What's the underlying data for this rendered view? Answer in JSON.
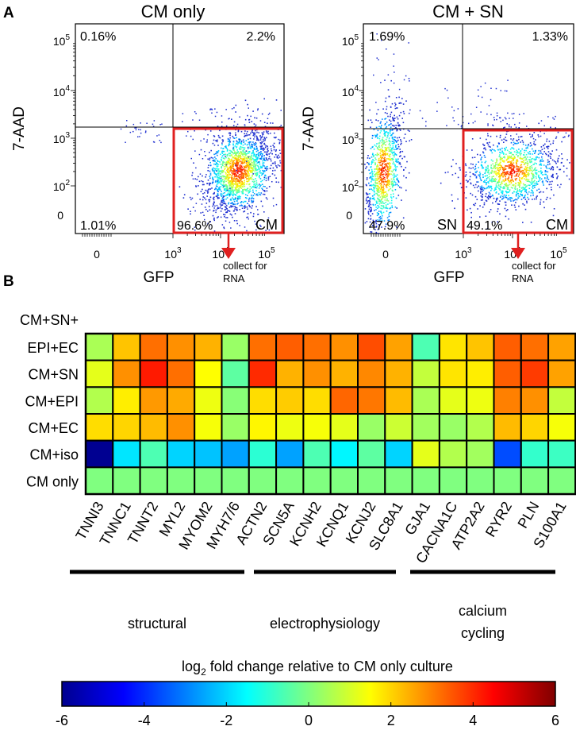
{
  "chart_data": [
    {
      "type": "scatter",
      "panel": "A",
      "title": "CM only",
      "xlabel": "GFP",
      "ylabel": "7-AAD",
      "x_ticks": [
        {
          "base": "0",
          "exp": ""
        },
        {
          "base": "10",
          "exp": "3"
        },
        {
          "base": "10",
          "exp": "4"
        },
        {
          "base": "10",
          "exp": "5"
        }
      ],
      "y_ticks": [
        {
          "base": "0",
          "exp": ""
        },
        {
          "base": "10",
          "exp": "2"
        },
        {
          "base": "10",
          "exp": "3"
        },
        {
          "base": "10",
          "exp": "4"
        },
        {
          "base": "10",
          "exp": "5"
        }
      ],
      "quadrants": {
        "upper_left": "0.16%",
        "upper_right": "2.2%",
        "lower_left": "1.01%",
        "lower_right": "96.6%"
      },
      "gates": [
        {
          "label": "CM",
          "color": "#e02020"
        }
      ],
      "annotation": [
        "collect for",
        "RNA"
      ]
    },
    {
      "type": "scatter",
      "panel": "A",
      "title": "CM + SN",
      "xlabel": "GFP",
      "ylabel": "7-AAD",
      "x_ticks": [
        {
          "base": "0",
          "exp": ""
        },
        {
          "base": "10",
          "exp": "3"
        },
        {
          "base": "10",
          "exp": "4"
        },
        {
          "base": "10",
          "exp": "5"
        }
      ],
      "y_ticks": [
        {
          "base": "0",
          "exp": ""
        },
        {
          "base": "10",
          "exp": "2"
        },
        {
          "base": "10",
          "exp": "3"
        },
        {
          "base": "10",
          "exp": "4"
        },
        {
          "base": "10",
          "exp": "5"
        }
      ],
      "quadrants": {
        "upper_left": "1.69%",
        "upper_right": "1.33%",
        "lower_left": "47.9%",
        "lower_right": "49.1%"
      },
      "population_labels": {
        "lower_left": "SN",
        "lower_right": "CM"
      },
      "gates": [
        {
          "label": "CM",
          "color": "#e02020"
        }
      ],
      "annotation": [
        "collect for",
        "RNA"
      ]
    },
    {
      "type": "heatmap",
      "panel": "B",
      "title": "log2 fold change relative to CM only culture",
      "colorbar_label": {
        "base": "log",
        "sub": "2",
        "rest": " fold change relative to CM only culture"
      },
      "rows": [
        {
          "label_lines": [
            "CM+SN+",
            "EPI+EC"
          ],
          "values": [
            0.5,
            2.2,
            3.2,
            2.8,
            2.4,
            0.3,
            3.2,
            3.4,
            3.2,
            2.8,
            3.6,
            2.6,
            -0.6,
            1.8,
            2.2,
            3.4,
            3.2,
            2.6
          ]
        },
        {
          "label_lines": [
            "CM+SN"
          ],
          "values": [
            1.2,
            2.8,
            4.2,
            3.2,
            1.5,
            -0.4,
            4.0,
            2.4,
            2.8,
            2.4,
            2.9,
            2.4,
            0.8,
            1.8,
            1.7,
            3.4,
            3.8,
            2.6
          ]
        },
        {
          "label_lines": [
            "CM+EPI"
          ],
          "values": [
            0.6,
            1.7,
            2.7,
            2.5,
            1.3,
            0.1,
            1.9,
            2.1,
            1.9,
            3.3,
            3.1,
            2.3,
            0.5,
            1.2,
            1.3,
            3.0,
            2.8,
            0.8
          ]
        },
        {
          "label_lines": [
            "CM+EC"
          ],
          "values": [
            1.9,
            2.0,
            2.3,
            2.8,
            1.4,
            0.3,
            1.6,
            1.3,
            1.4,
            1.2,
            0.3,
            0.9,
            0.4,
            0.3,
            0.6,
            2.3,
            2.0,
            1.4
          ]
        },
        {
          "label_lines": [
            "CM+iso"
          ],
          "values": [
            -5.8,
            -1.8,
            -0.6,
            -2.0,
            -2.2,
            -2.6,
            -1.0,
            -2.6,
            -0.6,
            -1.6,
            -0.4,
            -2.0,
            1.2,
            0.6,
            0.4,
            -3.6,
            -0.9,
            -0.8
          ]
        },
        {
          "label_lines": [
            "CM only"
          ],
          "values": [
            0,
            0,
            0,
            0,
            0,
            0,
            0,
            0,
            0,
            0,
            0,
            0,
            0,
            0,
            0,
            0,
            0,
            0
          ]
        }
      ],
      "columns": [
        "TNNI3",
        "TNNC1",
        "TNNT2",
        "MYL2",
        "MYOM2",
        "MYH7/6",
        "ACTN2",
        "SCN5A",
        "KCNH2",
        "KCNQ1",
        "KCNJ2",
        "SLC8A1",
        "GJA1",
        "CACNA1C",
        "ATP2A2",
        "RYR2",
        "PLN",
        "S100A1"
      ],
      "groups": [
        {
          "label_lines": [
            "structural"
          ],
          "start": 0,
          "end": 6
        },
        {
          "label_lines": [
            "electrophysiology"
          ],
          "start": 7,
          "end": 11
        },
        {
          "label_lines": [
            "calcium",
            "cycling"
          ],
          "start": 12,
          "end": 17
        }
      ],
      "colorbar": {
        "min": -6,
        "max": 6,
        "ticks": [
          "-6",
          "-4",
          "-2",
          "0",
          "2",
          "4",
          "6"
        ],
        "colormap": "jet"
      }
    }
  ],
  "panel_labels": [
    "A",
    "B"
  ]
}
